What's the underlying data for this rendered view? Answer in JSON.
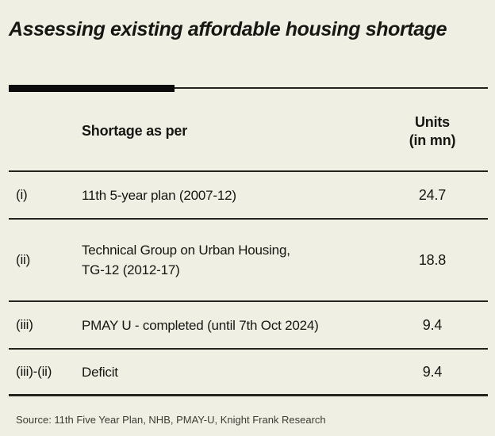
{
  "title": "Assessing existing affordable housing shortage",
  "colors": {
    "bg": "#f0efe3",
    "ink": "#161613",
    "rule": "#24241f",
    "bar": "#0b0b0b",
    "muted": "#3d3d36"
  },
  "table": {
    "header": {
      "label_column": "Shortage as per",
      "value_column_line1": "Units",
      "value_column_line2": "(in mn)"
    },
    "rows": [
      {
        "index": "(i)",
        "label": "11th 5-year plan (2007-12)",
        "label_line2": "",
        "value": "24.7"
      },
      {
        "index": "(ii)",
        "label": "Technical Group on Urban Housing,",
        "label_line2": "TG-12 (2012-17)",
        "value": "18.8"
      },
      {
        "index": "(iii)",
        "label": "PMAY U - completed (until 7th Oct 2024)",
        "label_line2": "",
        "value": "9.4"
      },
      {
        "index": "(iii)-(ii)",
        "label": "Deficit",
        "label_line2": "",
        "value": "9.4"
      }
    ]
  },
  "source": "Source: 11th Five Year Plan, NHB, PMAY-U, Knight Frank Research",
  "chart_data": {
    "type": "table",
    "title": "Assessing existing affordable housing shortage",
    "columns": [
      "",
      "Shortage as per",
      "Units (in mn)"
    ],
    "rows": [
      [
        "(i)",
        "11th 5-year plan (2007-12)",
        24.7
      ],
      [
        "(ii)",
        "Technical Group on Urban Housing, TG-12 (2012-17)",
        18.8
      ],
      [
        "(iii)",
        "PMAY U - completed (until 7th Oct 2024)",
        9.4
      ],
      [
        "(iii)-(ii)",
        "Deficit",
        9.4
      ]
    ],
    "source": "Source: 11th Five Year Plan, NHB, PMAY-U, Knight Frank Research"
  }
}
